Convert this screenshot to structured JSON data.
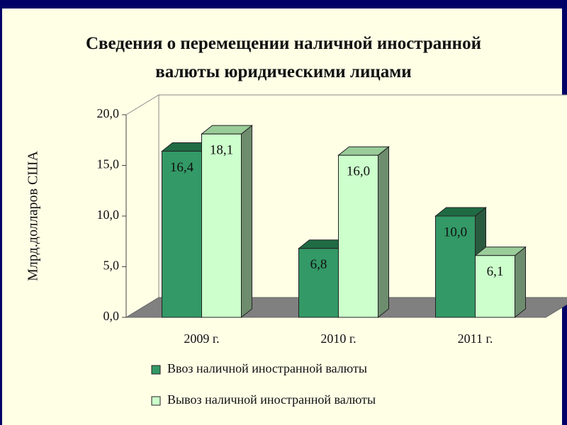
{
  "chart_data": {
    "type": "bar3d",
    "title": "Сведения о перемещении наличной иностранной валюты юридическими лицами",
    "y_label": "Млрд.долларов США",
    "categories": [
      "2009 г.",
      "2010 г.",
      "2011 г."
    ],
    "series": [
      {
        "name": "Ввоз наличной иностранной валюты",
        "color": "#339966",
        "values": [
          16.4,
          6.8,
          10.0
        ],
        "value_labels": [
          "16,4",
          "6,8",
          "10,0"
        ]
      },
      {
        "name": "Вывоз наличной иностранной валюты",
        "color": "#ccffcc",
        "values": [
          18.1,
          16.0,
          6.1
        ],
        "value_labels": [
          "18,1",
          "16,0",
          "6,1"
        ]
      }
    ],
    "ylim": [
      0,
      20
    ],
    "yticks": [
      {
        "value": 0,
        "label": "0,0"
      },
      {
        "value": 5,
        "label": "5,0"
      },
      {
        "value": 10,
        "label": "10,0"
      },
      {
        "value": 15,
        "label": "15,0"
      },
      {
        "value": 20,
        "label": "20,0"
      }
    ]
  }
}
